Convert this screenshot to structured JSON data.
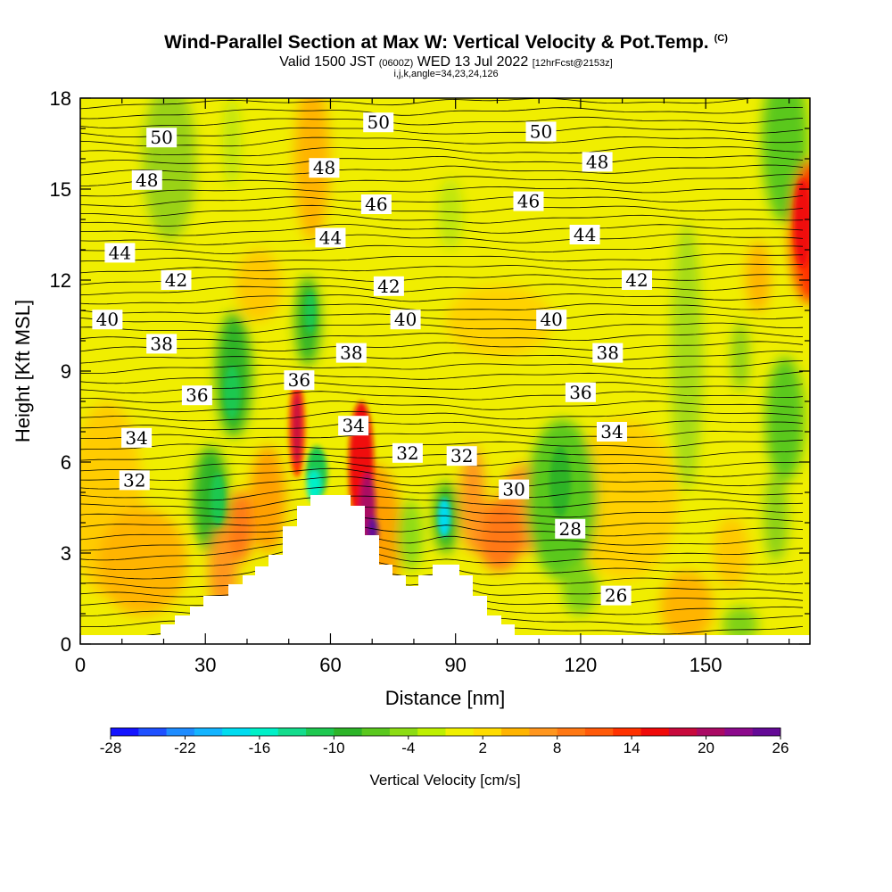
{
  "title": "Wind-Parallel Section at Max W: Vertical Velocity & Pot.Temp.",
  "title_mark": "(C)",
  "subtitle": {
    "valid": "Valid 1500 JST",
    "zulu": "(0600Z)",
    "date": "WED 13 Jul 2022",
    "forecast": "[12hrFcst@2153z]"
  },
  "subtitle2": "i,j,k,angle=34,23,24,126",
  "chart_data": {
    "type": "heatmap",
    "xlabel": "Distance [nm]",
    "ylabel": "Height [Kft MSL]",
    "xlim": [
      0,
      175
    ],
    "ylim": [
      0,
      18
    ],
    "xticks": [
      0,
      30,
      60,
      90,
      120,
      150
    ],
    "yticks": [
      0,
      3,
      6,
      9,
      12,
      15,
      18
    ],
    "colorbar": {
      "label": "Vertical Velocity [cm/s]",
      "tick_labels": [
        "-28",
        "-22",
        "-16",
        "-10",
        "-4",
        "2",
        "8",
        "14",
        "20",
        "26"
      ],
      "tick_values": [
        -28,
        -22,
        -16,
        -10,
        -4,
        2,
        8,
        14,
        20,
        26
      ],
      "colors": [
        "#1414ff",
        "#1e50ff",
        "#1e8cff",
        "#14b4ff",
        "#00dcf0",
        "#00f0c8",
        "#14dc8c",
        "#1ec850",
        "#2db428",
        "#5ac81e",
        "#8cdc14",
        "#bef000",
        "#f0f000",
        "#ffdc00",
        "#ffb400",
        "#ff961e",
        "#ff7814",
        "#ff5a0a",
        "#ff3200",
        "#f00a0a",
        "#c80a3c",
        "#aa0a64",
        "#8c0a8c",
        "#640a96"
      ]
    },
    "theta_contour_labels": [
      {
        "text": "50",
        "x": 19.5,
        "y": 16.7
      },
      {
        "text": "50",
        "x": 71.5,
        "y": 17.2
      },
      {
        "text": "50",
        "x": 110.5,
        "y": 16.9
      },
      {
        "text": "48",
        "x": 16,
        "y": 15.3
      },
      {
        "text": "48",
        "x": 58.5,
        "y": 15.7
      },
      {
        "text": "48",
        "x": 124,
        "y": 15.9
      },
      {
        "text": "46",
        "x": 71,
        "y": 14.5
      },
      {
        "text": "46",
        "x": 107.5,
        "y": 14.6
      },
      {
        "text": "44",
        "x": 9.5,
        "y": 12.9
      },
      {
        "text": "44",
        "x": 60,
        "y": 13.4
      },
      {
        "text": "44",
        "x": 121,
        "y": 13.5
      },
      {
        "text": "42",
        "x": 23,
        "y": 12.0
      },
      {
        "text": "42",
        "x": 74,
        "y": 11.8
      },
      {
        "text": "42",
        "x": 133.5,
        "y": 12.0
      },
      {
        "text": "40",
        "x": 6.5,
        "y": 10.7
      },
      {
        "text": "40",
        "x": 78,
        "y": 10.7
      },
      {
        "text": "40",
        "x": 113,
        "y": 10.7
      },
      {
        "text": "38",
        "x": 19.5,
        "y": 9.9
      },
      {
        "text": "38",
        "x": 65,
        "y": 9.6
      },
      {
        "text": "38",
        "x": 126.5,
        "y": 9.6
      },
      {
        "text": "36",
        "x": 28,
        "y": 8.2
      },
      {
        "text": "36",
        "x": 52.5,
        "y": 8.7
      },
      {
        "text": "36",
        "x": 120,
        "y": 8.3
      },
      {
        "text": "34",
        "x": 13.5,
        "y": 6.8
      },
      {
        "text": "34",
        "x": 65.5,
        "y": 7.2
      },
      {
        "text": "34",
        "x": 127.5,
        "y": 7.0
      },
      {
        "text": "32",
        "x": 13,
        "y": 5.4
      },
      {
        "text": "32",
        "x": 78.5,
        "y": 6.3
      },
      {
        "text": "32",
        "x": 91.5,
        "y": 6.2
      },
      {
        "text": "30",
        "x": 104,
        "y": 5.1
      },
      {
        "text": "28",
        "x": 117.5,
        "y": 3.8
      },
      {
        "text": "26",
        "x": 128.5,
        "y": 1.6
      }
    ]
  }
}
